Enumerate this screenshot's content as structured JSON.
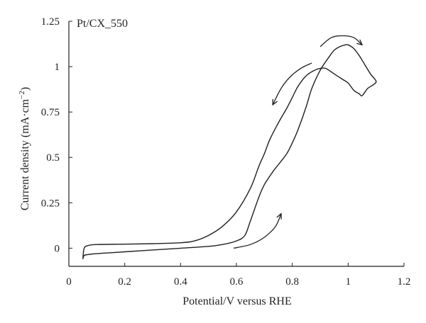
{
  "chart_data": {
    "type": "line",
    "panel_label": "Pt/CX_550",
    "xlabel": "Potential/V versus RHE",
    "ylabel_main": "Current density (mA·cm",
    "ylabel_sup": "−2",
    "ylabel_close": ")",
    "xlim": [
      0,
      1.2
    ],
    "ylim": [
      -0.1,
      1.25
    ],
    "x_ticks": [
      {
        "value": 0,
        "label": "0"
      },
      {
        "value": 0.2,
        "label": "0.2"
      },
      {
        "value": 0.4,
        "label": "0.4"
      },
      {
        "value": 0.6,
        "label": "0.6"
      },
      {
        "value": 0.8,
        "label": "0.8"
      },
      {
        "value": 1.0,
        "label": "1"
      },
      {
        "value": 1.2,
        "label": "1.2"
      }
    ],
    "y_ticks": [
      {
        "value": 0,
        "label": "0"
      },
      {
        "value": 0.25,
        "label": "0.25"
      },
      {
        "value": 0.5,
        "label": "0.5"
      },
      {
        "value": 0.75,
        "label": "0.75"
      },
      {
        "value": 1.0,
        "label": "1"
      },
      {
        "value": 1.25,
        "label": "1.25"
      }
    ],
    "grid": false,
    "line_color": "#231f20",
    "series": [
      {
        "x": [
          0.05,
          0.055,
          0.07,
          0.1,
          0.15,
          0.2,
          0.3,
          0.4,
          0.5,
          0.55,
          0.6,
          0.63,
          0.65,
          0.68,
          0.7,
          0.73,
          0.75,
          0.78,
          0.8,
          0.82,
          0.85,
          0.87,
          0.9,
          0.93,
          0.95,
          0.97,
          0.99,
          1.0,
          1.02,
          1.04,
          1.06,
          1.08,
          1.1,
          1.09,
          1.07,
          1.05,
          1.04,
          1.02,
          1.0,
          0.98,
          0.95,
          0.92,
          0.9,
          0.88,
          0.85,
          0.82,
          0.8,
          0.78,
          0.75,
          0.72,
          0.7,
          0.68,
          0.65,
          0.6,
          0.55,
          0.5,
          0.45,
          0.4,
          0.3,
          0.2,
          0.1,
          0.07,
          0.055,
          0.05
        ],
        "y": [
          -0.06,
          -0.04,
          -0.035,
          -0.03,
          -0.025,
          -0.02,
          -0.01,
          0.0,
          0.01,
          0.02,
          0.04,
          0.07,
          0.15,
          0.28,
          0.35,
          0.42,
          0.46,
          0.52,
          0.58,
          0.65,
          0.78,
          0.88,
          0.98,
          1.05,
          1.09,
          1.11,
          1.12,
          1.12,
          1.1,
          1.06,
          1.01,
          0.96,
          0.92,
          0.9,
          0.88,
          0.84,
          0.85,
          0.87,
          0.91,
          0.93,
          0.96,
          0.99,
          0.99,
          0.98,
          0.95,
          0.89,
          0.83,
          0.77,
          0.69,
          0.6,
          0.52,
          0.45,
          0.33,
          0.2,
          0.12,
          0.07,
          0.04,
          0.03,
          0.025,
          0.022,
          0.02,
          0.015,
          0.0,
          -0.06
        ]
      }
    ],
    "direction_arrows": [
      {
        "name": "forward-scan",
        "x": [
          0.59,
          0.65,
          0.7,
          0.74,
          0.76
        ],
        "y": [
          0.0,
          0.02,
          0.06,
          0.12,
          0.19
        ]
      },
      {
        "name": "reversal",
        "x": [
          0.9,
          0.94,
          0.98,
          1.02,
          1.05
        ],
        "y": [
          1.11,
          1.16,
          1.17,
          1.16,
          1.12
        ]
      },
      {
        "name": "reverse-scan",
        "x": [
          0.87,
          0.83,
          0.79,
          0.76,
          0.73
        ],
        "y": [
          1.02,
          0.99,
          0.94,
          0.88,
          0.79
        ]
      }
    ]
  }
}
